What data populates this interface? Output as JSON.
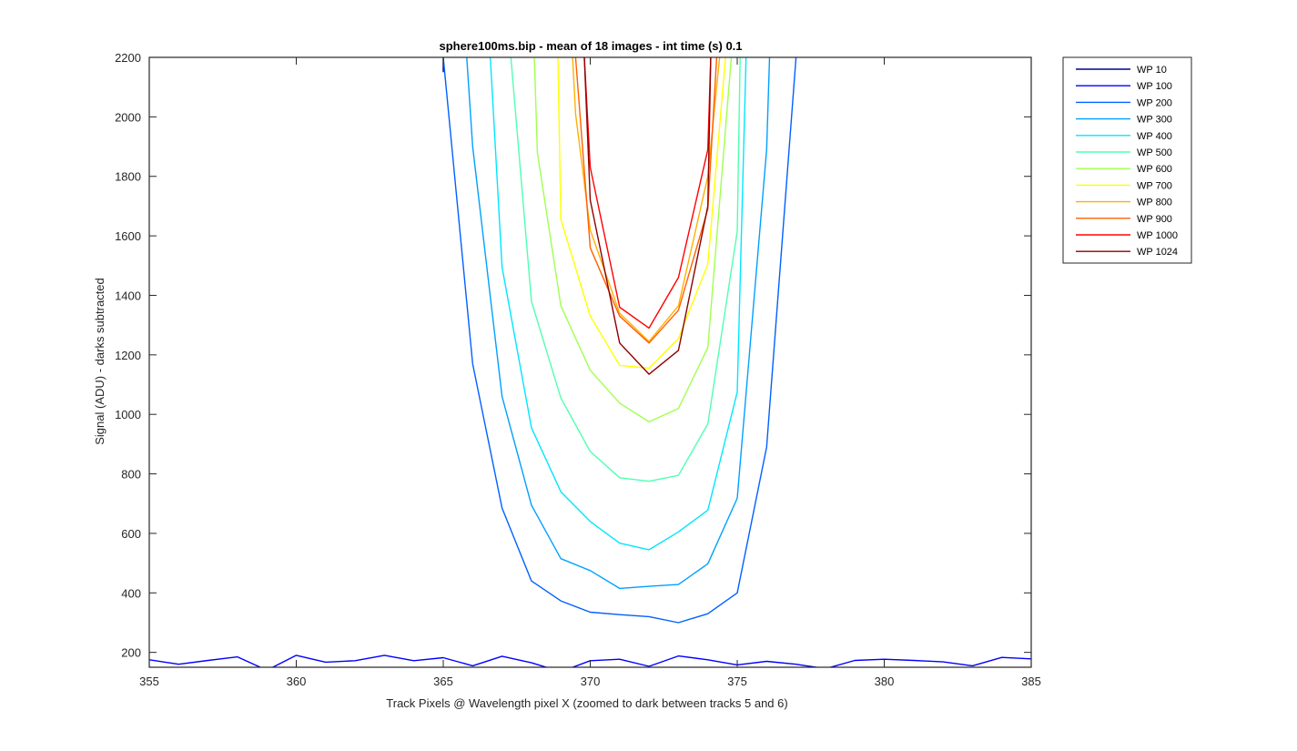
{
  "chart_data": {
    "type": "line",
    "title": "sphere100ms.bip - mean of 18 images - int time (s) 0.1",
    "xlabel": "Track Pixels @ Wavelength pixel X  (zoomed to dark between tracks 5 and 6)",
    "ylabel": "Signal (ADU) - darks subtracted",
    "xlim": [
      355,
      385
    ],
    "ylim": [
      150,
      2200
    ],
    "xticks": [
      355,
      360,
      365,
      370,
      375,
      380,
      385
    ],
    "yticks": [
      200,
      400,
      600,
      800,
      1000,
      1200,
      1400,
      1600,
      1800,
      2000,
      2200
    ],
    "grid": false,
    "legend_position": "outside-top-right",
    "series": [
      {
        "name": "WP 10",
        "color": "#00008f",
        "points": [
          [
            365,
            2250
          ],
          [
            365,
            2150
          ]
        ]
      },
      {
        "name": "WP 100",
        "color": "#0000ff",
        "points": [
          [
            355,
            175
          ],
          [
            356,
            160
          ],
          [
            357,
            173
          ],
          [
            358,
            185
          ],
          [
            359,
            140
          ],
          [
            360,
            190
          ],
          [
            361,
            167
          ],
          [
            362,
            172
          ],
          [
            363,
            190
          ],
          [
            364,
            172
          ],
          [
            365,
            182
          ],
          [
            366,
            155
          ],
          [
            367,
            187
          ],
          [
            368,
            165
          ],
          [
            369,
            135
          ],
          [
            370,
            172
          ],
          [
            371,
            177
          ],
          [
            372,
            153
          ],
          [
            373,
            188
          ],
          [
            374,
            175
          ],
          [
            375,
            158
          ],
          [
            376,
            170
          ],
          [
            377,
            160
          ],
          [
            378,
            145
          ],
          [
            379,
            173
          ],
          [
            380,
            177
          ],
          [
            381,
            173
          ],
          [
            382,
            168
          ],
          [
            383,
            155
          ],
          [
            384,
            183
          ],
          [
            385,
            178
          ]
        ]
      },
      {
        "name": "WP 200",
        "color": "#0060ff",
        "points": [
          [
            365,
            2200
          ],
          [
            366,
            1170
          ],
          [
            367,
            685
          ],
          [
            368,
            440
          ],
          [
            369,
            373
          ],
          [
            370,
            335
          ],
          [
            371,
            327
          ],
          [
            372,
            320
          ],
          [
            373,
            300
          ],
          [
            374,
            330
          ],
          [
            375,
            400
          ],
          [
            376,
            890
          ],
          [
            377,
            2200
          ]
        ]
      },
      {
        "name": "WP 300",
        "color": "#00a0ff",
        "points": [
          [
            365.8,
            2200
          ],
          [
            366,
            1900
          ],
          [
            367,
            1060
          ],
          [
            368,
            695
          ],
          [
            369,
            515
          ],
          [
            370,
            475
          ],
          [
            371,
            415
          ],
          [
            372,
            422
          ],
          [
            373,
            428
          ],
          [
            374,
            498
          ],
          [
            375,
            718
          ],
          [
            376,
            1890
          ],
          [
            376.1,
            2200
          ]
        ]
      },
      {
        "name": "WP 400",
        "color": "#00e6ff",
        "points": [
          [
            366.6,
            2200
          ],
          [
            367,
            1495
          ],
          [
            368,
            955
          ],
          [
            369,
            740
          ],
          [
            370,
            640
          ],
          [
            371,
            567
          ],
          [
            372,
            545
          ],
          [
            373,
            605
          ],
          [
            374,
            678
          ],
          [
            375,
            1075
          ],
          [
            375.3,
            2200
          ]
        ]
      },
      {
        "name": "WP 500",
        "color": "#50ffb0",
        "points": [
          [
            367.3,
            2200
          ],
          [
            368,
            1380
          ],
          [
            369,
            1055
          ],
          [
            370,
            875
          ],
          [
            371,
            787
          ],
          [
            372,
            775
          ],
          [
            373,
            795
          ],
          [
            374,
            968
          ],
          [
            375,
            1615
          ],
          [
            375.1,
            2200
          ]
        ]
      },
      {
        "name": "WP 600",
        "color": "#a0ff50",
        "points": [
          [
            368.1,
            2200
          ],
          [
            368.2,
            1880
          ],
          [
            369,
            1365
          ],
          [
            370,
            1148
          ],
          [
            371,
            1038
          ],
          [
            372,
            975
          ],
          [
            373,
            1020
          ],
          [
            374,
            1225
          ],
          [
            374.8,
            2200
          ]
        ]
      },
      {
        "name": "WP 700",
        "color": "#ffff00",
        "points": [
          [
            368.9,
            2200
          ],
          [
            369,
            1655
          ],
          [
            370,
            1330
          ],
          [
            371,
            1165
          ],
          [
            372,
            1155
          ],
          [
            373,
            1255
          ],
          [
            374,
            1505
          ],
          [
            374.6,
            2200
          ]
        ]
      },
      {
        "name": "WP 800",
        "color": "#ffb000",
        "points": [
          [
            369.4,
            2200
          ],
          [
            369.5,
            2010
          ],
          [
            370,
            1620
          ],
          [
            371,
            1340
          ],
          [
            372,
            1245
          ],
          [
            373,
            1365
          ],
          [
            374,
            1800
          ],
          [
            374.4,
            2200
          ]
        ]
      },
      {
        "name": "WP 900",
        "color": "#ff6000",
        "points": [
          [
            369.5,
            2200
          ],
          [
            370,
            1560
          ],
          [
            371,
            1330
          ],
          [
            372,
            1240
          ],
          [
            373,
            1350
          ],
          [
            374,
            1690
          ],
          [
            374.3,
            2200
          ]
        ]
      },
      {
        "name": "WP 1000",
        "color": "#ff0000",
        "points": [
          [
            369.8,
            2200
          ],
          [
            370,
            1830
          ],
          [
            371,
            1360
          ],
          [
            372,
            1290
          ],
          [
            373,
            1460
          ],
          [
            374,
            1890
          ],
          [
            374.1,
            2200
          ]
        ]
      },
      {
        "name": "WP 1024",
        "color": "#8f0000",
        "points": [
          [
            369.8,
            2200
          ],
          [
            370,
            1720
          ],
          [
            371,
            1240
          ],
          [
            372,
            1135
          ],
          [
            373,
            1215
          ],
          [
            374,
            1700
          ],
          [
            374.1,
            2200
          ]
        ]
      }
    ]
  }
}
